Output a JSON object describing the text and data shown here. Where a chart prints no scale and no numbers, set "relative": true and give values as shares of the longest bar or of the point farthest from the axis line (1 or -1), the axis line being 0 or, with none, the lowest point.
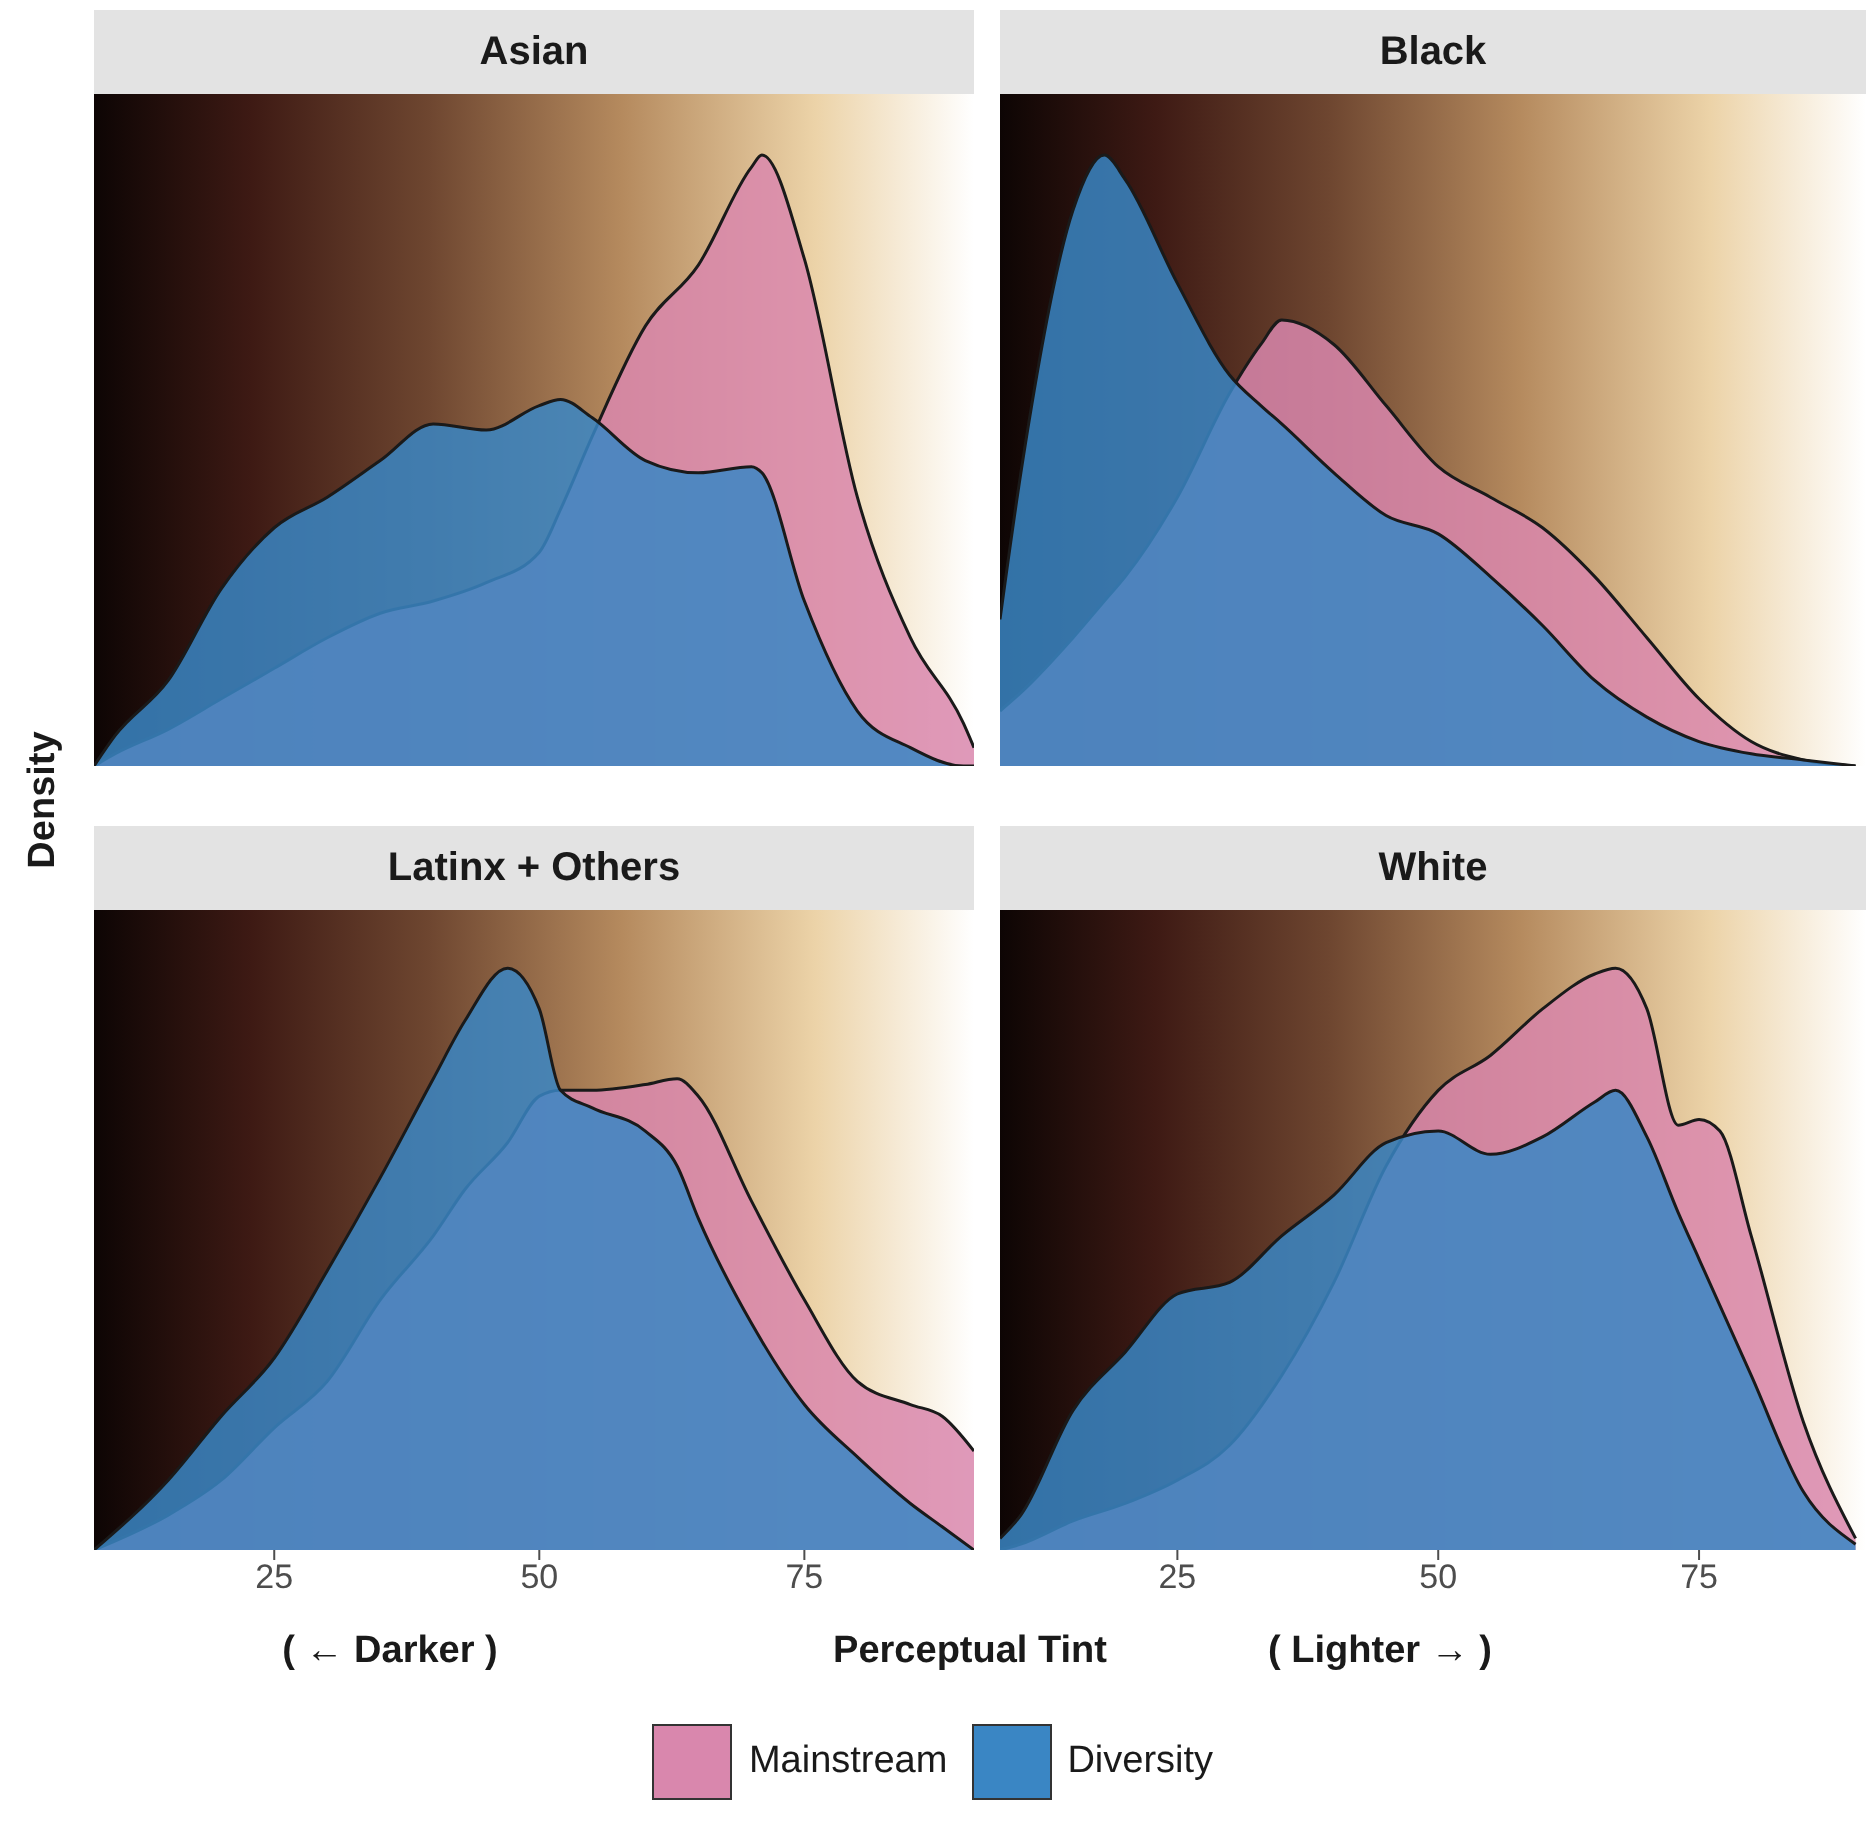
{
  "chart_data": [
    {
      "type": "area",
      "title": "Asian",
      "ylabel": "Density",
      "legend": "bottom",
      "relative": true,
      "xlim": [
        8,
        91
      ],
      "xticks": [
        25,
        50,
        75
      ],
      "tick_labels": false,
      "x": [
        8,
        10,
        15,
        20,
        25,
        30,
        35,
        40,
        45,
        50,
        52,
        55,
        60,
        65,
        70,
        71,
        75,
        80,
        85,
        90,
        91
      ],
      "series": [
        {
          "name": "Mainstream",
          "color": "#d987ad",
          "values": [
            0,
            0.02,
            0.06,
            0.11,
            0.16,
            0.21,
            0.25,
            0.27,
            0.3,
            0.35,
            0.42,
            0.54,
            0.72,
            0.82,
            0.98,
            1,
            0.83,
            0.44,
            0.21,
            0.07,
            0.03
          ]
        },
        {
          "name": "Diversity",
          "color": "#3a86c4",
          "values": [
            0,
            0.05,
            0.14,
            0.29,
            0.39,
            0.44,
            0.5,
            0.56,
            0.55,
            0.59,
            0.6,
            0.57,
            0.5,
            0.48,
            0.49,
            0.48,
            0.27,
            0.09,
            0.03,
            0,
            0
          ]
        }
      ]
    },
    {
      "type": "area",
      "title": "Black",
      "relative": true,
      "xlim": [
        8,
        91
      ],
      "xticks": [
        25,
        50,
        75
      ],
      "tick_labels": false,
      "x": [
        8,
        10,
        15,
        18,
        20,
        25,
        30,
        33,
        35,
        40,
        45,
        50,
        55,
        60,
        65,
        70,
        75,
        80,
        85,
        90
      ],
      "series": [
        {
          "color": "#d987ad",
          "values": [
            0.09,
            0.12,
            0.21,
            0.27,
            0.31,
            0.44,
            0.61,
            0.69,
            0.73,
            0.69,
            0.59,
            0.49,
            0.44,
            0.39,
            0.31,
            0.21,
            0.11,
            0.04,
            0.01,
            0
          ]
        },
        {
          "color": "#3a86c4",
          "values": [
            0.24,
            0.48,
            0.91,
            1,
            0.96,
            0.79,
            0.64,
            0.59,
            0.56,
            0.48,
            0.41,
            0.38,
            0.31,
            0.23,
            0.14,
            0.08,
            0.04,
            0.02,
            0.01,
            0
          ]
        }
      ]
    },
    {
      "type": "area",
      "title": "Latinx + Others",
      "xlabel": "Perceptual Tint",
      "annotations": [
        "( ← Darker )",
        "( Lighter → )"
      ],
      "relative": true,
      "xlim": [
        8,
        91
      ],
      "xticks": [
        25,
        50,
        75
      ],
      "tick_labels": "x",
      "x": [
        8,
        15,
        20,
        25,
        30,
        35,
        40,
        43,
        47,
        50,
        52,
        55,
        60,
        63,
        65,
        70,
        75,
        80,
        85,
        88,
        91
      ],
      "series": [
        {
          "color": "#d987ad",
          "values": [
            0,
            0.06,
            0.12,
            0.21,
            0.29,
            0.43,
            0.54,
            0.62,
            0.7,
            0.78,
            0.79,
            0.79,
            0.8,
            0.81,
            0.78,
            0.6,
            0.43,
            0.29,
            0.25,
            0.23,
            0.17
          ]
        },
        {
          "color": "#3a86c4",
          "values": [
            0,
            0.12,
            0.23,
            0.33,
            0.48,
            0.64,
            0.81,
            0.91,
            1,
            0.93,
            0.79,
            0.76,
            0.72,
            0.66,
            0.57,
            0.39,
            0.25,
            0.16,
            0.08,
            0.04,
            0
          ]
        }
      ]
    },
    {
      "type": "area",
      "title": "White",
      "relative": true,
      "xlim": [
        8,
        91
      ],
      "xticks": [
        25,
        50,
        75
      ],
      "tick_labels": "x",
      "x": [
        8,
        10,
        15,
        20,
        25,
        30,
        35,
        40,
        45,
        50,
        55,
        60,
        65,
        67,
        70,
        73,
        75,
        77,
        80,
        85,
        90
      ],
      "series": [
        {
          "color": "#d987ad",
          "values": [
            0,
            0.01,
            0.05,
            0.08,
            0.12,
            0.18,
            0.3,
            0.46,
            0.66,
            0.79,
            0.85,
            0.93,
            0.99,
            1,
            0.93,
            0.73,
            0.74,
            0.72,
            0.54,
            0.22,
            0.02
          ]
        },
        {
          "color": "#3a86c4",
          "values": [
            0.02,
            0.06,
            0.24,
            0.34,
            0.44,
            0.46,
            0.54,
            0.61,
            0.7,
            0.72,
            0.68,
            0.71,
            0.77,
            0.79,
            0.71,
            0.58,
            0.5,
            0.42,
            0.3,
            0.1,
            0.01
          ]
        }
      ]
    }
  ]
}
